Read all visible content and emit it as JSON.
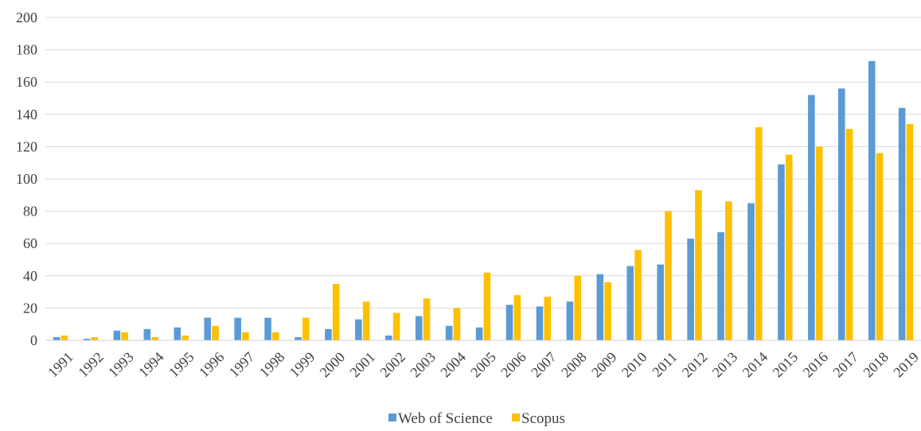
{
  "chart_data": {
    "type": "bar",
    "categories": [
      "1991",
      "1992",
      "1993",
      "1994",
      "1995",
      "1996",
      "1997",
      "1998",
      "1999",
      "2000",
      "2001",
      "2002",
      "2003",
      "2004",
      "2005",
      "2006",
      "2007",
      "2008",
      "2009",
      "2010",
      "2011",
      "2012",
      "2013",
      "2014",
      "2015",
      "2016",
      "2017",
      "2018",
      "2019"
    ],
    "series": [
      {
        "name": "Web of Science",
        "color": "#5B9BD5",
        "values": [
          2,
          1,
          6,
          7,
          8,
          14,
          14,
          14,
          2,
          7,
          13,
          3,
          15,
          9,
          8,
          22,
          21,
          24,
          41,
          46,
          47,
          63,
          67,
          85,
          109,
          152,
          156,
          173,
          144
        ]
      },
      {
        "name": "Scopus",
        "color": "#FFC000",
        "values": [
          3,
          2,
          5,
          2,
          3,
          9,
          5,
          5,
          14,
          35,
          24,
          17,
          26,
          20,
          42,
          28,
          27,
          40,
          36,
          56,
          80,
          93,
          86,
          132,
          115,
          120,
          131,
          116,
          134
        ]
      }
    ],
    "ylim": [
      0,
      200
    ],
    "yticks": [
      0,
      20,
      40,
      60,
      80,
      100,
      120,
      140,
      160,
      180,
      200
    ],
    "grid": true,
    "legend_position": "bottom-center",
    "title": "",
    "xlabel": "",
    "ylabel": ""
  }
}
